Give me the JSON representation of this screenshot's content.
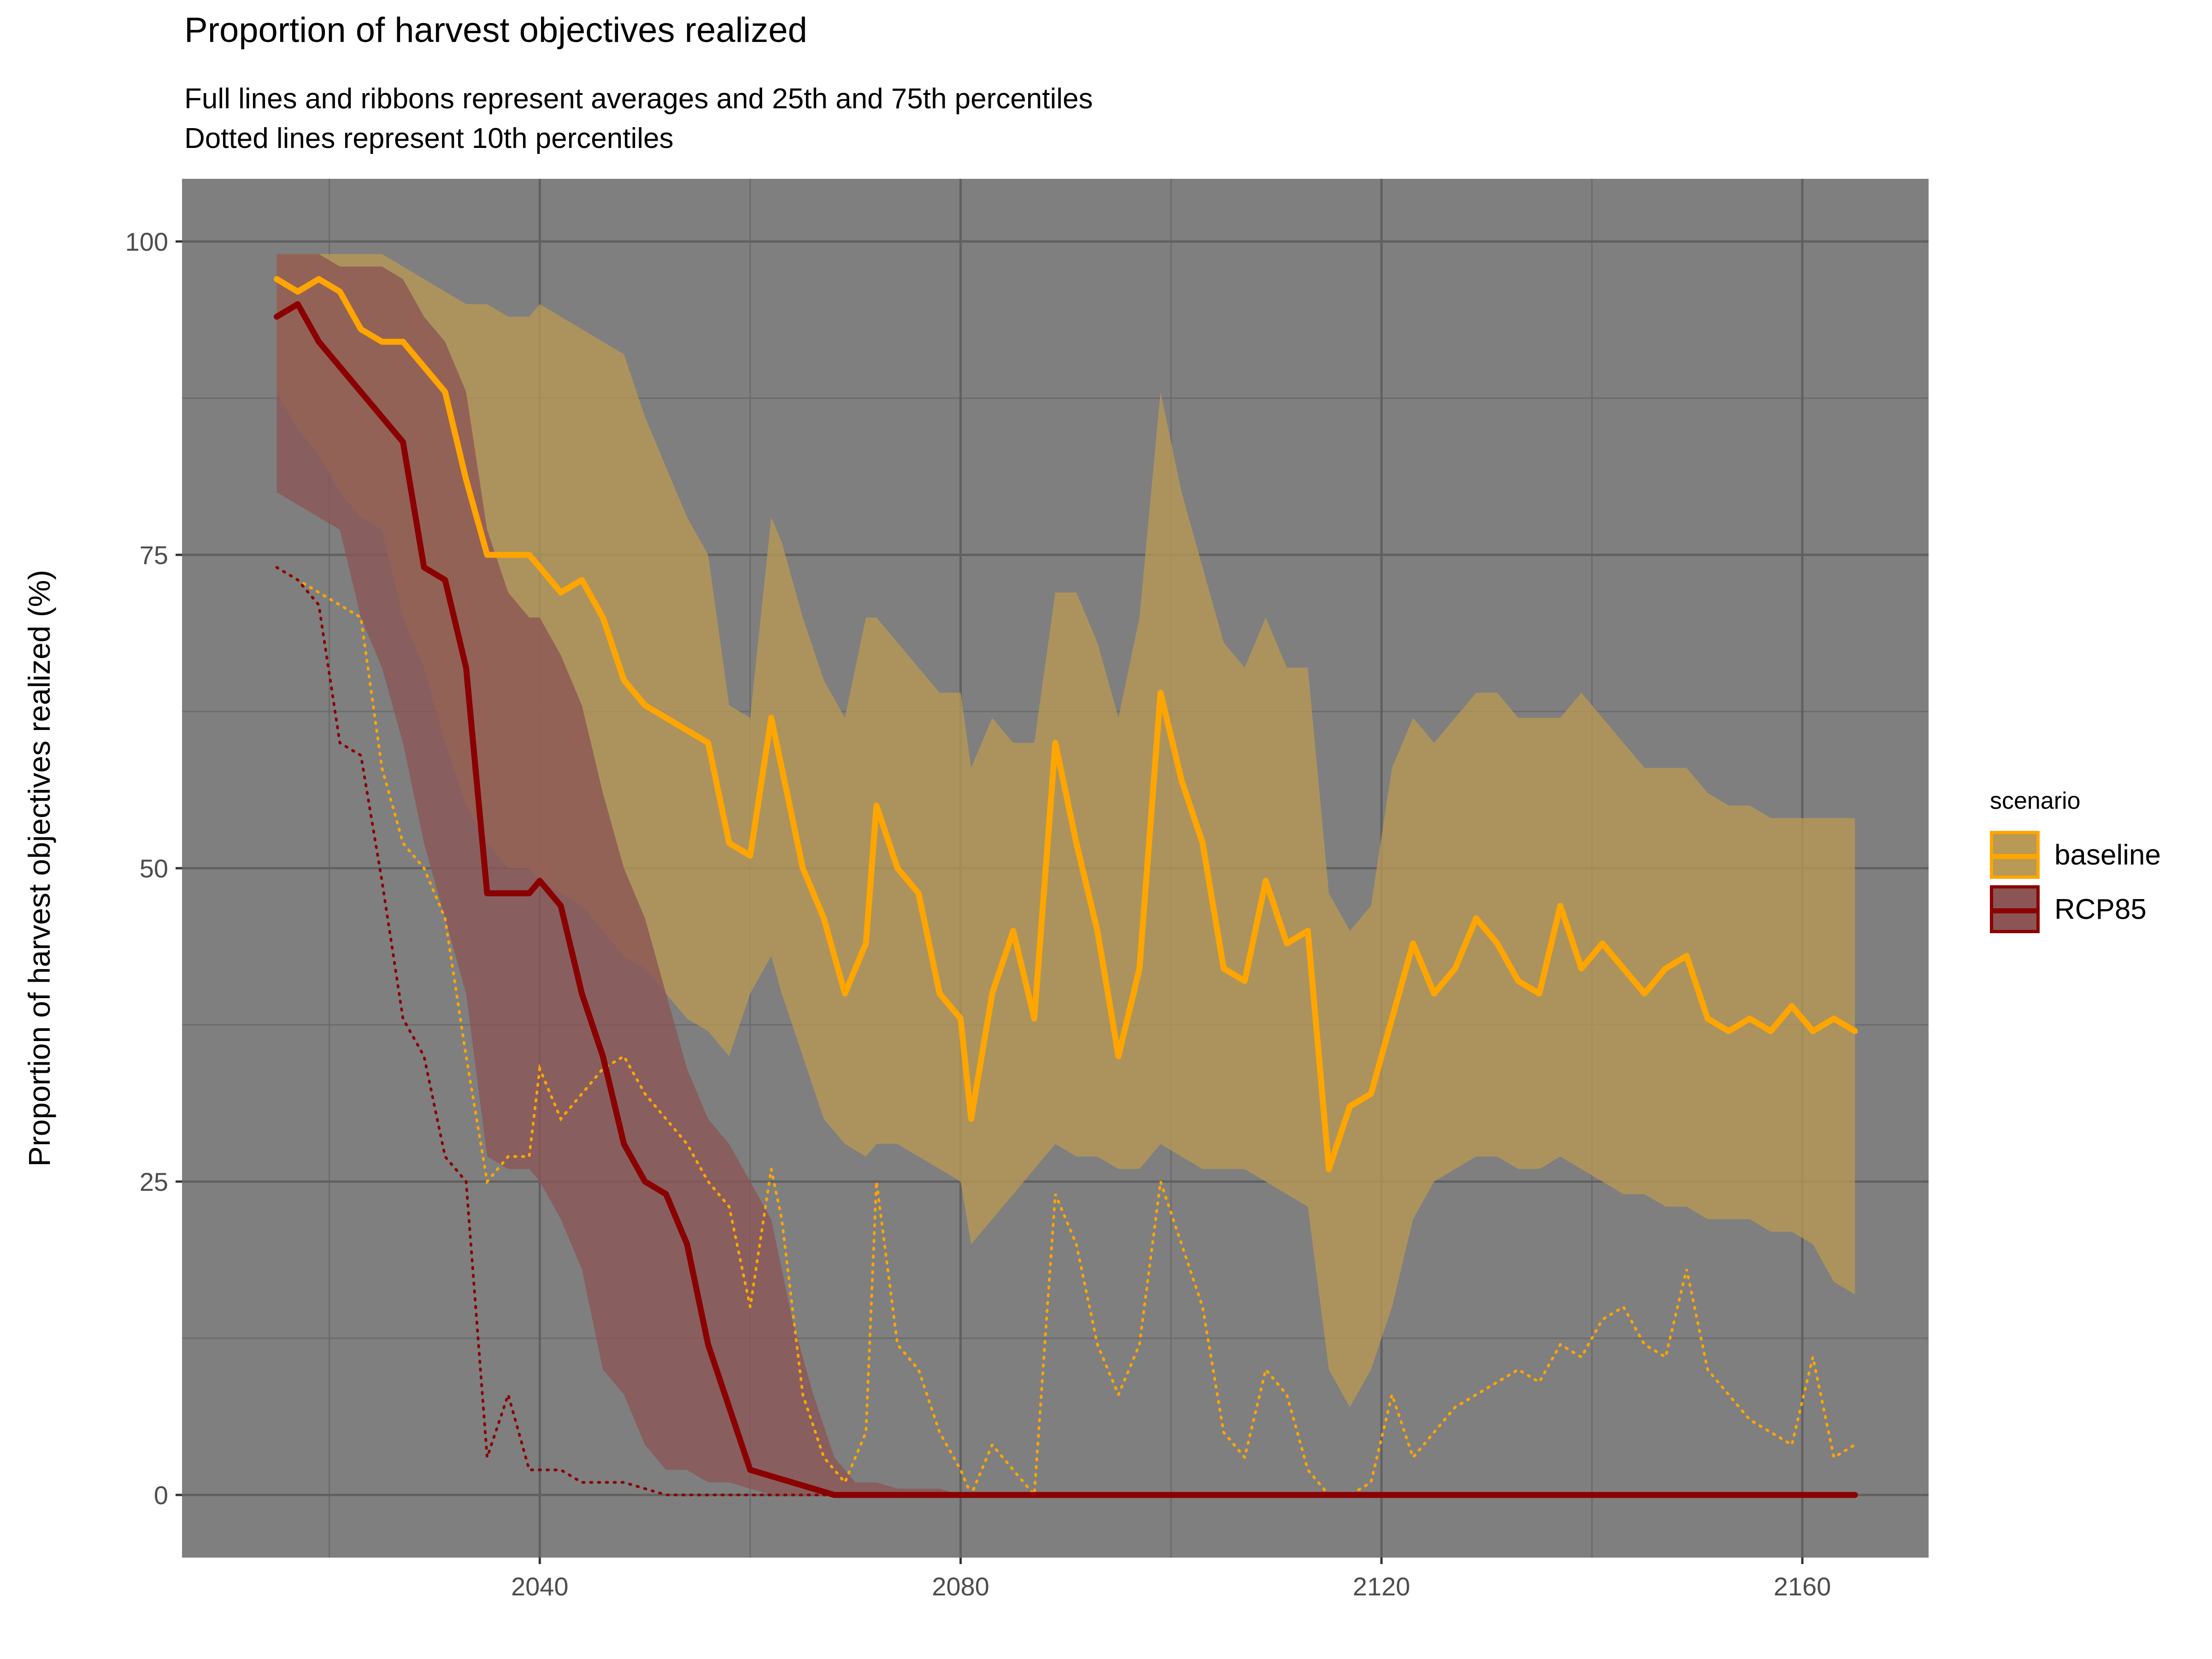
{
  "chart_data": {
    "type": "line",
    "title": "Proportion of harvest objectives realized",
    "subtitle": [
      "Full lines and ribbons represent averages and 25th and 75th percentiles",
      "Dotted lines represent 10th percentiles"
    ],
    "xlabel": "",
    "ylabel": "Proportion of harvest objectives realized (%)",
    "xlim": [
      2006,
      2172
    ],
    "ylim": [
      -5,
      105
    ],
    "x_ticks": [
      2040,
      2080,
      2120,
      2160
    ],
    "y_ticks": [
      0,
      25,
      50,
      75,
      100
    ],
    "x_tick_labels": [
      "2040",
      "2080",
      "2120",
      "2160"
    ],
    "y_tick_labels": [
      "0",
      "25",
      "50",
      "75",
      "100"
    ],
    "grid": true,
    "panel_background": "#7f7f7f",
    "legend": {
      "title": "scenario",
      "position": "right",
      "entries": [
        "baseline",
        "RCP85"
      ]
    },
    "series": [
      {
        "name": "baseline",
        "color": "#FFA500",
        "ribbon_color": "#B89955",
        "x": [
          2015,
          2017,
          2019,
          2021,
          2023,
          2025,
          2027,
          2029,
          2031,
          2033,
          2035,
          2037,
          2039,
          2040,
          2042,
          2044,
          2046,
          2048,
          2050,
          2052,
          2054,
          2056,
          2058,
          2060,
          2062,
          2063,
          2065,
          2067,
          2069,
          2071,
          2072,
          2074,
          2076,
          2078,
          2080,
          2081,
          2083,
          2085,
          2087,
          2089,
          2091,
          2093,
          2095,
          2097,
          2099,
          2101,
          2103,
          2105,
          2107,
          2109,
          2111,
          2113,
          2115,
          2117,
          2119,
          2121,
          2123,
          2125,
          2127,
          2129,
          2131,
          2133,
          2135,
          2137,
          2139,
          2141,
          2143,
          2145,
          2147,
          2149,
          2151,
          2153,
          2155,
          2157,
          2159,
          2161,
          2163,
          2165
        ],
        "mean": [
          97,
          96,
          97,
          96,
          93,
          92,
          92,
          90,
          88,
          81,
          75,
          75,
          75,
          74,
          72,
          73,
          70,
          65,
          63,
          62,
          61,
          60,
          52,
          51,
          62,
          58,
          50,
          46,
          40,
          44,
          55,
          50,
          48,
          40,
          38,
          30,
          40,
          45,
          38,
          60,
          52,
          45,
          35,
          42,
          64,
          57,
          52,
          42,
          41,
          49,
          44,
          45,
          26,
          31,
          32,
          38,
          44,
          40,
          42,
          46,
          44,
          41,
          40,
          47,
          42,
          44,
          42,
          40,
          42,
          43,
          38,
          37,
          38,
          37,
          39,
          37,
          38,
          37
        ],
        "p25": [
          88,
          85,
          83,
          80,
          78,
          77,
          70,
          66,
          60,
          55,
          52,
          50,
          50,
          49,
          48,
          47,
          45,
          43,
          42,
          40,
          38,
          37,
          35,
          40,
          43,
          40,
          35,
          30,
          28,
          27,
          28,
          28,
          27,
          26,
          25,
          20,
          22,
          24,
          26,
          28,
          27,
          27,
          26,
          26,
          28,
          27,
          26,
          26,
          26,
          25,
          24,
          23,
          10,
          7,
          10,
          15,
          22,
          25,
          26,
          27,
          27,
          26,
          26,
          27,
          26,
          25,
          24,
          24,
          23,
          23,
          22,
          22,
          22,
          21,
          21,
          20,
          17,
          16
        ],
        "p75": [
          99,
          99,
          99,
          99,
          99,
          99,
          98,
          97,
          96,
          95,
          95,
          94,
          94,
          95,
          94,
          93,
          92,
          91,
          86,
          82,
          78,
          75,
          63,
          62,
          78,
          76,
          70,
          65,
          62,
          70,
          70,
          68,
          66,
          64,
          64,
          58,
          62,
          60,
          60,
          72,
          72,
          68,
          62,
          70,
          88,
          80,
          74,
          68,
          66,
          70,
          66,
          66,
          48,
          45,
          47,
          58,
          62,
          60,
          62,
          64,
          64,
          62,
          62,
          62,
          64,
          62,
          60,
          58,
          58,
          58,
          56,
          55,
          55,
          54,
          54,
          54,
          54,
          54
        ],
        "p10": [
          74,
          73,
          72,
          71,
          70,
          58,
          52,
          50,
          46,
          35,
          25,
          27,
          27,
          34,
          30,
          32,
          34,
          35,
          32,
          30,
          28,
          25,
          23,
          15,
          26,
          22,
          8,
          3,
          1,
          5,
          25,
          12,
          10,
          5,
          2,
          0,
          4,
          2,
          0,
          24,
          20,
          12,
          8,
          12,
          25,
          20,
          15,
          5,
          3,
          10,
          8,
          2,
          0,
          0,
          1,
          8,
          3,
          5,
          7,
          8,
          9,
          10,
          9,
          12,
          11,
          14,
          15,
          12,
          11,
          18,
          10,
          8,
          6,
          5,
          4,
          11,
          3,
          4
        ]
      },
      {
        "name": "RCP85",
        "color": "#8B0000",
        "ribbon_color": "#8C5555",
        "x": [
          2015,
          2017,
          2019,
          2021,
          2023,
          2025,
          2027,
          2029,
          2031,
          2033,
          2035,
          2037,
          2039,
          2040,
          2042,
          2044,
          2046,
          2048,
          2050,
          2052,
          2054,
          2056,
          2058,
          2060,
          2062,
          2064,
          2066,
          2068,
          2070,
          2072,
          2074,
          2076,
          2078,
          2080,
          2100,
          2120,
          2140,
          2165
        ],
        "mean": [
          94,
          95,
          92,
          90,
          88,
          86,
          84,
          74,
          73,
          66,
          48,
          48,
          48,
          49,
          47,
          40,
          35,
          28,
          25,
          24,
          20,
          12,
          7,
          2,
          1.5,
          1,
          0.5,
          0,
          0,
          0,
          0,
          0,
          0,
          0,
          0,
          0,
          0,
          0
        ],
        "p25": [
          80,
          79,
          78,
          77,
          70,
          66,
          60,
          52,
          46,
          40,
          27,
          26,
          26,
          25,
          22,
          18,
          10,
          8,
          4,
          2,
          2,
          1,
          1,
          0.5,
          0,
          0,
          0,
          0,
          0,
          0,
          0,
          0,
          0,
          0,
          0,
          0,
          0,
          0
        ],
        "p75": [
          99,
          99,
          99,
          98,
          98,
          98,
          97,
          94,
          92,
          88,
          77,
          72,
          70,
          70,
          67,
          63,
          56,
          50,
          46,
          40,
          34,
          30,
          28,
          25,
          22,
          14,
          8,
          3,
          1,
          1,
          0.5,
          0.5,
          0.5,
          0,
          0,
          0,
          0,
          0
        ],
        "p10": [
          74,
          73,
          71,
          60,
          59,
          49,
          38,
          35,
          27,
          25,
          3,
          8,
          2,
          2,
          2,
          1,
          1,
          1,
          0.5,
          0,
          0,
          0,
          0,
          0,
          0,
          0,
          0,
          0,
          0,
          0,
          0,
          0,
          0,
          0,
          0,
          0,
          0,
          0
        ]
      }
    ]
  }
}
